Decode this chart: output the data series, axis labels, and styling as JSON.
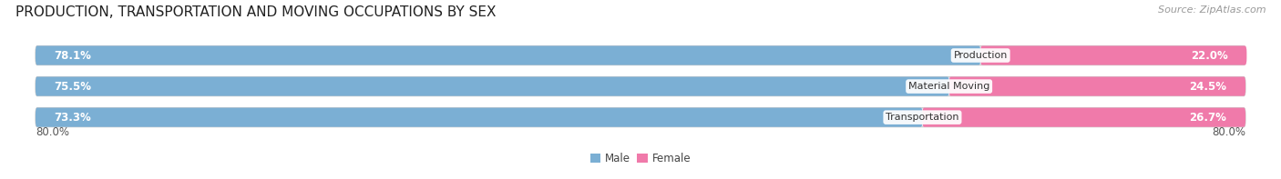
{
  "title": "PRODUCTION, TRANSPORTATION AND MOVING OCCUPATIONS BY SEX",
  "source": "Source: ZipAtlas.com",
  "categories": [
    "Production",
    "Material Moving",
    "Transportation"
  ],
  "male_values": [
    78.1,
    75.5,
    73.3
  ],
  "female_values": [
    22.0,
    24.5,
    26.7
  ],
  "male_color": "#7bafd4",
  "female_color": "#f07aaa",
  "bar_bg_color": "#e4e4ec",
  "x_min": -80.0,
  "x_max": 80.0,
  "x_left_label": "80.0%",
  "x_right_label": "80.0%",
  "title_fontsize": 11,
  "label_fontsize": 8,
  "tick_fontsize": 8.5,
  "source_fontsize": 8,
  "bg_color": "#ffffff",
  "bar_height": 0.62,
  "legend_labels": [
    "Male",
    "Female"
  ]
}
